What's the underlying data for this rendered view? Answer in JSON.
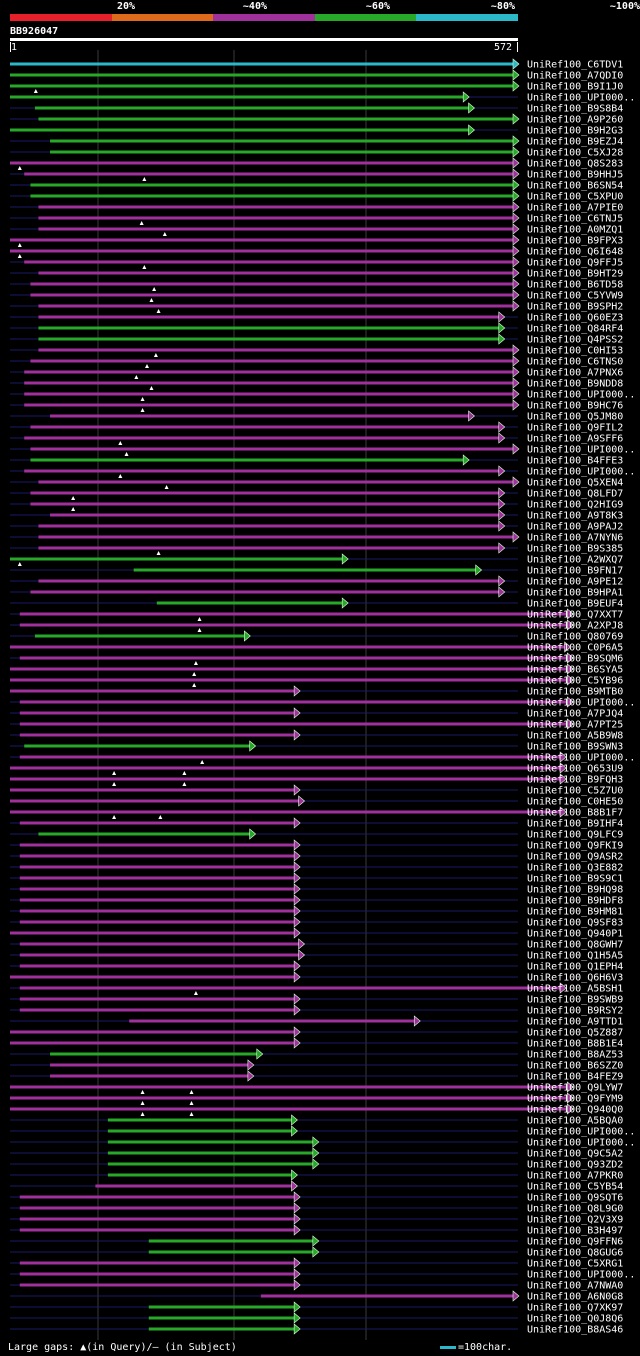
{
  "colors": {
    "red": "#e8202a",
    "orange": "#e06a1c",
    "purple": "#a0309c",
    "green": "#28a828",
    "cyan": "#2bb8c8",
    "grid": "#1a1a66",
    "guide": "#3a3a3a"
  },
  "scale_labels": [
    "20%",
    "~40%",
    "~60%",
    "~80%",
    "~100%"
  ],
  "scale_colors": [
    "red",
    "orange",
    "purple",
    "green",
    "cyan"
  ],
  "query": {
    "id": "BB926047",
    "start": "1",
    "end": "572",
    "length": 572
  },
  "legend": {
    "text": "Large gaps: ▲(in Query)/– (in Subject)",
    "scale_text": "=100char."
  },
  "hits": [
    {
      "name": "UniRef100_C6TDV1",
      "color": "cyan",
      "start": 1,
      "end": 572,
      "arrow": true,
      "marks": []
    },
    {
      "name": "UniRef100_A7QDI0",
      "color": "green",
      "start": 1,
      "end": 572,
      "arrow": true,
      "marks": []
    },
    {
      "name": "UniRef100_B9I1J0",
      "color": "green",
      "start": 1,
      "end": 572,
      "arrow": true,
      "marks": [
        30
      ]
    },
    {
      "name": "UniRef100_UPI000..",
      "color": "green",
      "start": 1,
      "end": 516,
      "arrow": true,
      "marks": []
    },
    {
      "name": "UniRef100_B9S8B4",
      "color": "green",
      "start": 29,
      "end": 522,
      "arrow": true,
      "marks": []
    },
    {
      "name": "UniRef100_A9P260",
      "color": "green",
      "start": 33,
      "end": 572,
      "arrow": true,
      "marks": []
    },
    {
      "name": "UniRef100_B9H2G3",
      "color": "green",
      "start": 1,
      "end": 522,
      "arrow": true,
      "marks": []
    },
    {
      "name": "UniRef100_B9EZJ4",
      "color": "green",
      "start": 46,
      "end": 572,
      "arrow": true,
      "marks": []
    },
    {
      "name": "UniRef100_C5XJ28",
      "color": "green",
      "start": 46,
      "end": 572,
      "arrow": true,
      "marks": []
    },
    {
      "name": "UniRef100_Q8S283",
      "color": "purple",
      "start": 1,
      "end": 572,
      "arrow": true,
      "marks": [
        12
      ]
    },
    {
      "name": "UniRef100_B9HHJ5",
      "color": "purple",
      "start": 17,
      "end": 572,
      "arrow": true,
      "marks": [
        152
      ]
    },
    {
      "name": "UniRef100_B6SN54",
      "color": "green",
      "start": 24,
      "end": 572,
      "arrow": true,
      "marks": []
    },
    {
      "name": "UniRef100_C5XPU0",
      "color": "green",
      "start": 24,
      "end": 572,
      "arrow": true,
      "marks": []
    },
    {
      "name": "UniRef100_A7PIE0",
      "color": "purple",
      "start": 33,
      "end": 572,
      "arrow": true,
      "marks": []
    },
    {
      "name": "UniRef100_C6TNJ5",
      "color": "purple",
      "start": 33,
      "end": 572,
      "arrow": true,
      "marks": [
        149
      ]
    },
    {
      "name": "UniRef100_A0MZQ1",
      "color": "purple",
      "start": 33,
      "end": 572,
      "arrow": true,
      "marks": [
        175
      ]
    },
    {
      "name": "UniRef100_B9FPX3",
      "color": "purple",
      "start": 1,
      "end": 572,
      "arrow": true,
      "marks": [
        12
      ]
    },
    {
      "name": "UniRef100_Q6I648",
      "color": "purple",
      "start": 1,
      "end": 572,
      "arrow": true,
      "marks": [
        12
      ]
    },
    {
      "name": "UniRef100_Q9FFJ5",
      "color": "purple",
      "start": 17,
      "end": 572,
      "arrow": true,
      "marks": [
        152
      ]
    },
    {
      "name": "UniRef100_B9HT29",
      "color": "purple",
      "start": 33,
      "end": 572,
      "arrow": true,
      "marks": []
    },
    {
      "name": "UniRef100_B6TD58",
      "color": "purple",
      "start": 24,
      "end": 572,
      "arrow": true,
      "marks": [
        163
      ]
    },
    {
      "name": "UniRef100_C5YVW9",
      "color": "purple",
      "start": 24,
      "end": 572,
      "arrow": true,
      "marks": [
        160
      ]
    },
    {
      "name": "UniRef100_B9SPH2",
      "color": "purple",
      "start": 33,
      "end": 572,
      "arrow": true,
      "marks": [
        168
      ]
    },
    {
      "name": "UniRef100_Q60EZ3",
      "color": "purple",
      "start": 33,
      "end": 556,
      "arrow": true,
      "marks": []
    },
    {
      "name": "UniRef100_Q84RF4",
      "color": "green",
      "start": 33,
      "end": 556,
      "arrow": true,
      "marks": []
    },
    {
      "name": "UniRef100_Q4PSS2",
      "color": "green",
      "start": 33,
      "end": 556,
      "arrow": true,
      "marks": []
    },
    {
      "name": "UniRef100_C0HI53",
      "color": "purple",
      "start": 33,
      "end": 572,
      "arrow": true,
      "marks": [
        165
      ]
    },
    {
      "name": "UniRef100_C6TNS0",
      "color": "purple",
      "start": 24,
      "end": 572,
      "arrow": true,
      "marks": [
        155
      ]
    },
    {
      "name": "UniRef100_A7PNX6",
      "color": "purple",
      "start": 17,
      "end": 572,
      "arrow": true,
      "marks": [
        143
      ]
    },
    {
      "name": "UniRef100_B9NDD8",
      "color": "purple",
      "start": 17,
      "end": 572,
      "arrow": true,
      "marks": [
        160
      ]
    },
    {
      "name": "UniRef100_UPI000..",
      "color": "purple",
      "start": 17,
      "end": 572,
      "arrow": true,
      "marks": [
        150
      ]
    },
    {
      "name": "UniRef100_B9HC76",
      "color": "purple",
      "start": 17,
      "end": 572,
      "arrow": true,
      "marks": [
        150
      ]
    },
    {
      "name": "UniRef100_Q5JM80",
      "color": "purple",
      "start": 46,
      "end": 522,
      "arrow": true,
      "marks": []
    },
    {
      "name": "UniRef100_Q9FIL2",
      "color": "purple",
      "start": 24,
      "end": 556,
      "arrow": true,
      "marks": []
    },
    {
      "name": "UniRef100_A9SFF6",
      "color": "purple",
      "start": 17,
      "end": 556,
      "arrow": true,
      "marks": [
        125
      ]
    },
    {
      "name": "UniRef100_UPI000..",
      "color": "purple",
      "start": 24,
      "end": 572,
      "arrow": true,
      "marks": [
        132
      ]
    },
    {
      "name": "UniRef100_B4FFE3",
      "color": "green",
      "start": 24,
      "end": 516,
      "arrow": true,
      "marks": []
    },
    {
      "name": "UniRef100_UPI000..",
      "color": "purple",
      "start": 17,
      "end": 556,
      "arrow": true,
      "marks": [
        125
      ]
    },
    {
      "name": "UniRef100_Q5XEN4",
      "color": "purple",
      "start": 33,
      "end": 572,
      "arrow": true,
      "marks": [
        177
      ]
    },
    {
      "name": "UniRef100_Q8LFD7",
      "color": "purple",
      "start": 24,
      "end": 556,
      "arrow": true,
      "marks": [
        72
      ]
    },
    {
      "name": "UniRef100_Q2HIG9",
      "color": "purple",
      "start": 24,
      "end": 556,
      "arrow": true,
      "marks": [
        72
      ]
    },
    {
      "name": "UniRef100_A9T8K3",
      "color": "purple",
      "start": 46,
      "end": 556,
      "arrow": true,
      "marks": []
    },
    {
      "name": "UniRef100_A9PAJ2",
      "color": "purple",
      "start": 33,
      "end": 556,
      "arrow": true,
      "marks": []
    },
    {
      "name": "UniRef100_A7NYN6",
      "color": "purple",
      "start": 33,
      "end": 572,
      "arrow": true,
      "marks": []
    },
    {
      "name": "UniRef100_B9S385",
      "color": "purple",
      "start": 33,
      "end": 556,
      "arrow": true,
      "marks": [
        168
      ]
    },
    {
      "name": "UniRef100_A2WXQ7",
      "color": "green",
      "start": 1,
      "end": 380,
      "arrow": true,
      "marks": [
        12
      ]
    },
    {
      "name": "UniRef100_B9FN17",
      "color": "green",
      "start": 140,
      "end": 530,
      "arrow": true,
      "marks": []
    },
    {
      "name": "UniRef100_A9PE12",
      "color": "purple",
      "start": 33,
      "end": 556,
      "arrow": true,
      "marks": []
    },
    {
      "name": "UniRef100_B9HPA1",
      "color": "purple",
      "start": 24,
      "end": 556,
      "arrow": true,
      "marks": []
    },
    {
      "name": "UniRef100_B9EUF4",
      "color": "green",
      "start": 166,
      "end": 380,
      "arrow": true,
      "marks": []
    },
    {
      "name": "UniRef100_Q7XXT7",
      "color": "purple",
      "start": 12,
      "end": 633,
      "arrow": true,
      "marks": [
        214
      ]
    },
    {
      "name": "UniRef100_A2XPJ8",
      "color": "purple",
      "start": 12,
      "end": 633,
      "arrow": true,
      "marks": [
        214
      ]
    },
    {
      "name": "UniRef100_Q80769",
      "color": "green",
      "start": 29,
      "end": 270,
      "arrow": true,
      "marks": []
    },
    {
      "name": "UniRef100_C0P6A5",
      "color": "purple",
      "start": 1,
      "end": 630,
      "arrow": true,
      "marks": []
    },
    {
      "name": "UniRef100_B9SQM6",
      "color": "purple",
      "start": 12,
      "end": 633,
      "arrow": true,
      "marks": [
        210
      ]
    },
    {
      "name": "UniRef100_B6SYA5",
      "color": "purple",
      "start": 1,
      "end": 633,
      "arrow": true,
      "marks": [
        208
      ]
    },
    {
      "name": "UniRef100_C5YB96",
      "color": "purple",
      "start": 1,
      "end": 633,
      "arrow": true,
      "marks": [
        208
      ]
    },
    {
      "name": "UniRef100_B9MTB0",
      "color": "purple",
      "start": 1,
      "end": 326,
      "arrow": true,
      "marks": []
    },
    {
      "name": "UniRef100_UPI000..",
      "color": "purple",
      "start": 12,
      "end": 633,
      "arrow": true,
      "marks": []
    },
    {
      "name": "UniRef100_A7PJQ4",
      "color": "purple",
      "start": 12,
      "end": 326,
      "arrow": true,
      "marks": []
    },
    {
      "name": "UniRef100_A7PT25",
      "color": "purple",
      "start": 12,
      "end": 633,
      "arrow": true,
      "marks": []
    },
    {
      "name": "UniRef100_A5B9W8",
      "color": "purple",
      "start": 12,
      "end": 326,
      "arrow": true,
      "marks": []
    },
    {
      "name": "UniRef100_B9SWN3",
      "color": "green",
      "start": 17,
      "end": 276,
      "arrow": true,
      "marks": []
    },
    {
      "name": "UniRef100_UPI000..",
      "color": "purple",
      "start": 12,
      "end": 625,
      "arrow": true,
      "marks": [
        217
      ]
    },
    {
      "name": "UniRef100_Q653U9",
      "color": "purple",
      "start": 1,
      "end": 625,
      "arrow": true,
      "marks": [
        118,
        197
      ]
    },
    {
      "name": "UniRef100_B9FQH3",
      "color": "purple",
      "start": 1,
      "end": 625,
      "arrow": true,
      "marks": [
        118,
        197
      ]
    },
    {
      "name": "UniRef100_C5Z7U0",
      "color": "purple",
      "start": 1,
      "end": 326,
      "arrow": true,
      "marks": []
    },
    {
      "name": "UniRef100_C0HE50",
      "color": "purple",
      "start": 1,
      "end": 331,
      "arrow": true,
      "marks": []
    },
    {
      "name": "UniRef100_B8B1F7",
      "color": "purple",
      "start": 1,
      "end": 625,
      "arrow": true,
      "marks": [
        118,
        170
      ]
    },
    {
      "name": "UniRef100_B9IHF4",
      "color": "purple",
      "start": 12,
      "end": 326,
      "arrow": true,
      "marks": []
    },
    {
      "name": "UniRef100_Q9LFC9",
      "color": "green",
      "start": 33,
      "end": 276,
      "arrow": true,
      "marks": []
    },
    {
      "name": "UniRef100_Q9FKI9",
      "color": "purple",
      "start": 12,
      "end": 326,
      "arrow": true,
      "marks": []
    },
    {
      "name": "UniRef100_Q9ASR2",
      "color": "purple",
      "start": 12,
      "end": 326,
      "arrow": true,
      "marks": []
    },
    {
      "name": "UniRef100_Q3E882",
      "color": "purple",
      "start": 12,
      "end": 326,
      "arrow": true,
      "marks": []
    },
    {
      "name": "UniRef100_B9S9C1",
      "color": "purple",
      "start": 12,
      "end": 326,
      "arrow": true,
      "marks": []
    },
    {
      "name": "UniRef100_B9HQ98",
      "color": "purple",
      "start": 12,
      "end": 326,
      "arrow": true,
      "marks": []
    },
    {
      "name": "UniRef100_B9HDF8",
      "color": "purple",
      "start": 12,
      "end": 326,
      "arrow": true,
      "marks": []
    },
    {
      "name": "UniRef100_B9HM81",
      "color": "purple",
      "start": 12,
      "end": 326,
      "arrow": true,
      "marks": []
    },
    {
      "name": "UniRef100_Q9SF83",
      "color": "purple",
      "start": 12,
      "end": 326,
      "arrow": true,
      "marks": []
    },
    {
      "name": "UniRef100_Q940P1",
      "color": "purple",
      "start": 1,
      "end": 326,
      "arrow": true,
      "marks": []
    },
    {
      "name": "UniRef100_Q8GWH7",
      "color": "purple",
      "start": 12,
      "end": 331,
      "arrow": true,
      "marks": []
    },
    {
      "name": "UniRef100_Q1H5A5",
      "color": "purple",
      "start": 12,
      "end": 331,
      "arrow": true,
      "marks": []
    },
    {
      "name": "UniRef100_Q1EPH4",
      "color": "purple",
      "start": 12,
      "end": 326,
      "arrow": true,
      "marks": []
    },
    {
      "name": "UniRef100_Q6H6V3",
      "color": "purple",
      "start": 1,
      "end": 326,
      "arrow": true,
      "marks": []
    },
    {
      "name": "UniRef100_A5BSH1",
      "color": "purple",
      "start": 12,
      "end": 625,
      "arrow": true,
      "marks": [
        210
      ]
    },
    {
      "name": "UniRef100_B9SWB9",
      "color": "purple",
      "start": 12,
      "end": 326,
      "arrow": true,
      "marks": []
    },
    {
      "name": "UniRef100_B9RSY2",
      "color": "purple",
      "start": 12,
      "end": 326,
      "arrow": true,
      "marks": []
    },
    {
      "name": "UniRef100_A9TTD1",
      "color": "purple",
      "start": 135,
      "end": 461,
      "arrow": true,
      "marks": []
    },
    {
      "name": "UniRef100_Q5Z887",
      "color": "purple",
      "start": 1,
      "end": 326,
      "arrow": true,
      "marks": []
    },
    {
      "name": "UniRef100_B8B1E4",
      "color": "purple",
      "start": 1,
      "end": 326,
      "arrow": true,
      "marks": []
    },
    {
      "name": "UniRef100_B8AZ53",
      "color": "green",
      "start": 46,
      "end": 284,
      "arrow": true,
      "marks": []
    },
    {
      "name": "UniRef100_B6SZZ0",
      "color": "purple",
      "start": 46,
      "end": 274,
      "arrow": true,
      "marks": []
    },
    {
      "name": "UniRef100_B4FEZ9",
      "color": "purple",
      "start": 46,
      "end": 274,
      "arrow": true,
      "marks": []
    },
    {
      "name": "UniRef100_Q9LYW7",
      "color": "purple",
      "start": 1,
      "end": 633,
      "arrow": true,
      "marks": [
        150,
        205
      ]
    },
    {
      "name": "UniRef100_Q9FYM9",
      "color": "purple",
      "start": 1,
      "end": 633,
      "arrow": true,
      "marks": [
        150,
        205
      ]
    },
    {
      "name": "UniRef100_Q940Q0",
      "color": "purple",
      "start": 1,
      "end": 633,
      "arrow": true,
      "marks": [
        150,
        205
      ]
    },
    {
      "name": "UniRef100_A5BQA0",
      "color": "green",
      "start": 111,
      "end": 323,
      "arrow": true,
      "marks": []
    },
    {
      "name": "UniRef100_UPI000..",
      "color": "green",
      "start": 111,
      "end": 323,
      "arrow": true,
      "marks": []
    },
    {
      "name": "UniRef100_UPI000..",
      "color": "green",
      "start": 111,
      "end": 347,
      "arrow": true,
      "marks": []
    },
    {
      "name": "UniRef100_Q9C5A2",
      "color": "green",
      "start": 111,
      "end": 347,
      "arrow": true,
      "marks": []
    },
    {
      "name": "UniRef100_Q93ZD2",
      "color": "green",
      "start": 111,
      "end": 347,
      "arrow": true,
      "marks": []
    },
    {
      "name": "UniRef100_A7PKR0",
      "color": "green",
      "start": 111,
      "end": 323,
      "arrow": true,
      "marks": []
    },
    {
      "name": "UniRef100_C5YB54",
      "color": "purple",
      "start": 97,
      "end": 323,
      "arrow": true,
      "marks": []
    },
    {
      "name": "UniRef100_Q9SQT6",
      "color": "purple",
      "start": 12,
      "end": 326,
      "arrow": true,
      "marks": []
    },
    {
      "name": "UniRef100_Q8L9G0",
      "color": "purple",
      "start": 12,
      "end": 326,
      "arrow": true,
      "marks": []
    },
    {
      "name": "UniRef100_Q2V3X9",
      "color": "purple",
      "start": 12,
      "end": 326,
      "arrow": true,
      "marks": []
    },
    {
      "name": "UniRef100_B3H497",
      "color": "purple",
      "start": 12,
      "end": 326,
      "arrow": true,
      "marks": []
    },
    {
      "name": "UniRef100_Q9FFN6",
      "color": "green",
      "start": 157,
      "end": 347,
      "arrow": true,
      "marks": []
    },
    {
      "name": "UniRef100_Q8GUG6",
      "color": "green",
      "start": 157,
      "end": 347,
      "arrow": true,
      "marks": []
    },
    {
      "name": "UniRef100_C5XRG1",
      "color": "purple",
      "start": 12,
      "end": 326,
      "arrow": true,
      "marks": []
    },
    {
      "name": "UniRef100_UPI000..",
      "color": "purple",
      "start": 12,
      "end": 326,
      "arrow": true,
      "marks": []
    },
    {
      "name": "UniRef100_A7NWA0",
      "color": "purple",
      "start": 12,
      "end": 326,
      "arrow": true,
      "marks": []
    },
    {
      "name": "UniRef100_A6N0G8",
      "color": "purple",
      "start": 283,
      "end": 572,
      "arrow": true,
      "marks": []
    },
    {
      "name": "UniRef100_Q7XK97",
      "color": "green",
      "start": 157,
      "end": 326,
      "arrow": true,
      "marks": []
    },
    {
      "name": "UniRef100_Q0J8Q6",
      "color": "green",
      "start": 157,
      "end": 326,
      "arrow": true,
      "marks": []
    },
    {
      "name": "UniRef100_B8AS46",
      "color": "green",
      "start": 157,
      "end": 326,
      "arrow": true,
      "marks": []
    }
  ]
}
